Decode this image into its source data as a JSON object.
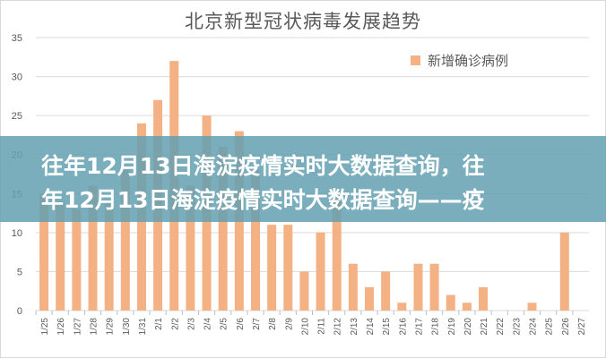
{
  "chart_data": {
    "type": "bar",
    "title": "北京新型冠状病毒发展趋势",
    "categories": [
      "1/25",
      "1/26",
      "1/27",
      "1/28",
      "1/29",
      "1/30",
      "1/31",
      "2/1",
      "2/2",
      "2/3",
      "2/4",
      "2/5",
      "2/6",
      "2/7",
      "2/8",
      "2/9",
      "2/10",
      "2/11",
      "2/12",
      "2/13",
      "2/14",
      "2/15",
      "2/16",
      "2/17",
      "2/18",
      "2/19",
      "2/20",
      "2/21",
      "2/22",
      "2/23",
      "2/24",
      "2/25",
      "2/26",
      "2/27"
    ],
    "series": [
      {
        "name": "新增确诊病例",
        "values": [
          15,
          14,
          13,
          16,
          14,
          18,
          24,
          27,
          32,
          16,
          25,
          21,
          23,
          18,
          11,
          11,
          5,
          10,
          15,
          6,
          3,
          5,
          1,
          6,
          6,
          2,
          1,
          3,
          0,
          0,
          1,
          0,
          10,
          0
        ],
        "color": "#f4b183"
      }
    ],
    "yticks": [
      "0",
      "5",
      "10",
      "15",
      "20",
      "25",
      "30",
      "35"
    ],
    "ylim": [
      0,
      35
    ],
    "grid": true,
    "legend": "top-right"
  },
  "banner": {
    "line1": "往年12月13日海淀疫情实时大数据查询，往",
    "line2": "年12月13日海淀疫情实时大数据查询——疫",
    "color": "#64a0b2"
  }
}
